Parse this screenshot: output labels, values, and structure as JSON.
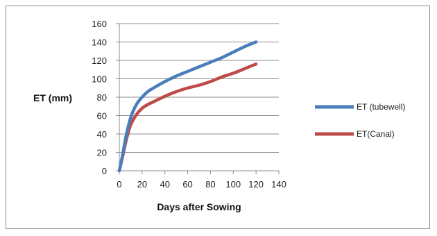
{
  "chart_data": {
    "type": "line",
    "xlabel": "Days after Sowing",
    "ylabel": "ET (mm)",
    "xlim": [
      0,
      140
    ],
    "ylim": [
      0,
      160
    ],
    "xticks": [
      0,
      20,
      40,
      60,
      80,
      100,
      120,
      140
    ],
    "yticks": [
      0,
      20,
      40,
      60,
      80,
      100,
      120,
      140,
      160
    ],
    "grid": "horizontal",
    "legend_position": "right",
    "series": [
      {
        "name": "ET (tubewell)",
        "color": "#4a7ebb",
        "x": [
          0,
          3,
          6,
          10,
          15,
          20,
          25,
          30,
          40,
          50,
          60,
          70,
          80,
          90,
          100,
          110,
          120
        ],
        "y": [
          0,
          18,
          38,
          58,
          72,
          80,
          86,
          90,
          97,
          103,
          108,
          113,
          118,
          123,
          129,
          135,
          140
        ]
      },
      {
        "name": "ET(Canal)",
        "color": "#be4b48",
        "x": [
          0,
          3,
          6,
          10,
          15,
          20,
          25,
          30,
          40,
          50,
          60,
          70,
          80,
          90,
          100,
          110,
          120
        ],
        "y": [
          0,
          16,
          33,
          50,
          61,
          68,
          72,
          75,
          81,
          86,
          90,
          93,
          97,
          102,
          106,
          111,
          116
        ]
      }
    ]
  }
}
